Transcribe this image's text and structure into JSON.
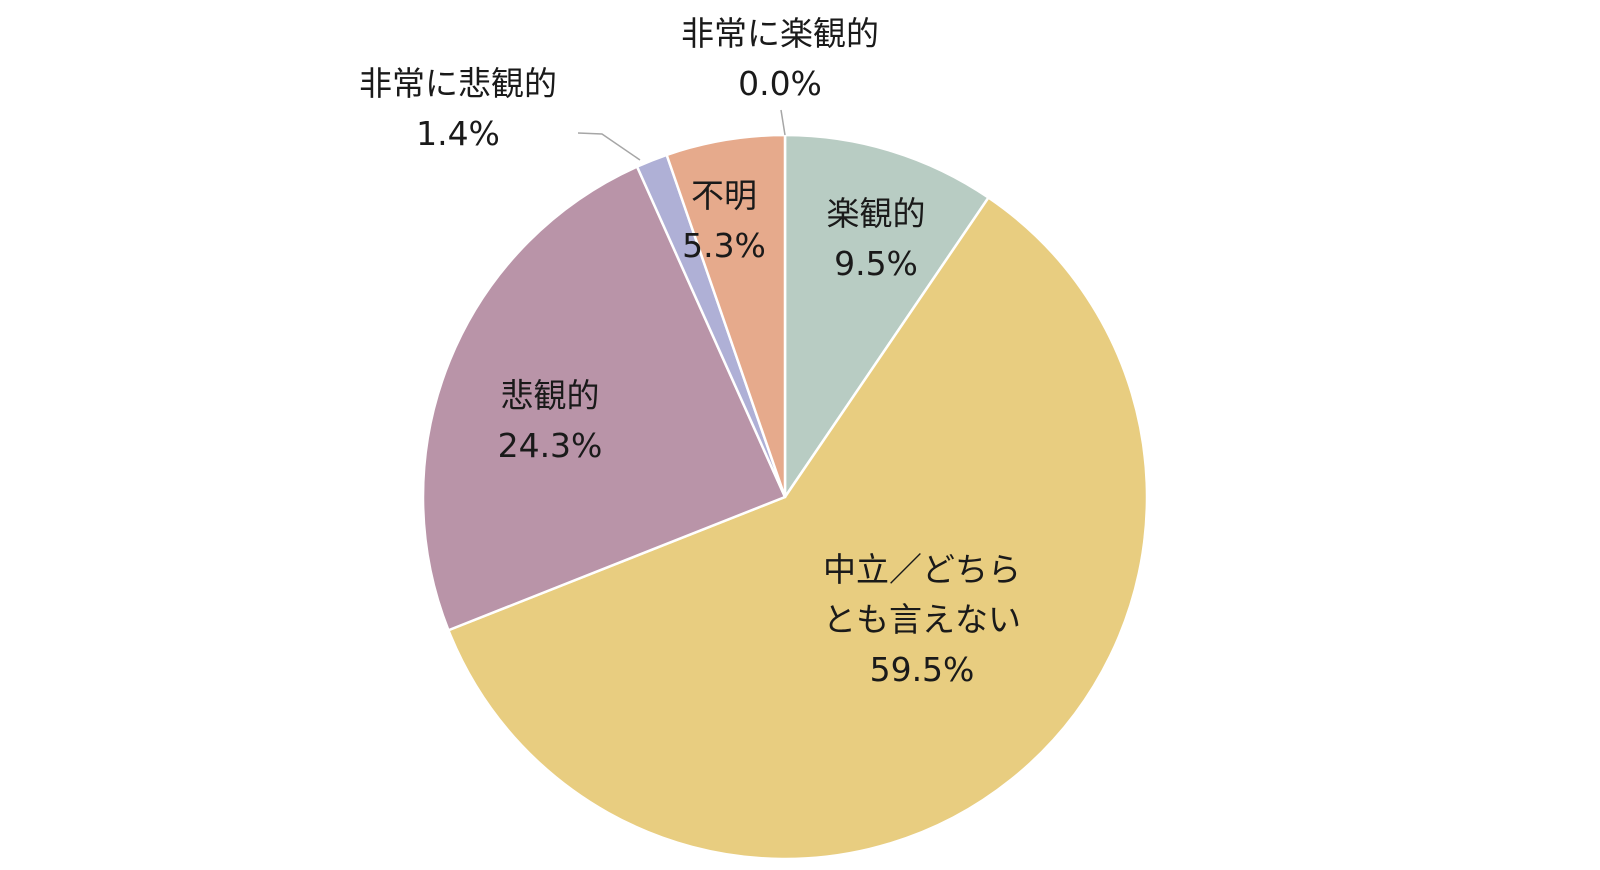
{
  "chart_data": {
    "type": "pie",
    "start_angle_deg": 0,
    "direction": "clockwise",
    "slices": [
      {
        "name": "楽観的",
        "value": 9.5,
        "label_lines": [
          "楽観的",
          "9.5%"
        ],
        "color": "#b8ccc3"
      },
      {
        "name": "中立／どちらとも言えない",
        "value": 59.5,
        "label_lines": [
          "中立／どちら",
          "とも言えない",
          "59.5%"
        ],
        "color": "#e8cd80"
      },
      {
        "name": "悲観的",
        "value": 24.3,
        "label_lines": [
          "悲観的",
          "24.3%"
        ],
        "color": "#b994a8"
      },
      {
        "name": "非常に悲観的",
        "value": 1.4,
        "label_lines": [
          "非常に悲観的",
          "1.4%"
        ],
        "color": "#afb0d6"
      },
      {
        "name": "不明",
        "value": 5.3,
        "label_lines": [
          "不明",
          "5.3%"
        ],
        "color": "#e6aa8c"
      },
      {
        "name": "非常に楽観的",
        "value": 0.0,
        "label_lines": [
          "非常に楽観的",
          "0.0%"
        ],
        "color": "#8fa8c8"
      }
    ],
    "legend": "none",
    "label_color": "#1a1a1a",
    "leader_color": "#a6a6a6"
  }
}
